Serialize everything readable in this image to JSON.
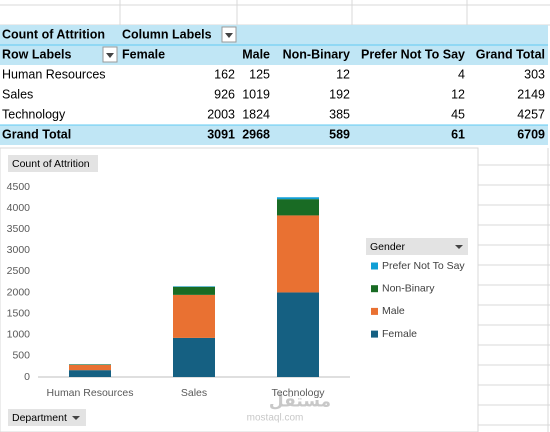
{
  "pivot_table": {
    "corner": "Count of Attrition",
    "column_labels": "Column Labels",
    "row_labels": "Row Labels",
    "columns": [
      "Female",
      "Male",
      "Non-Binary",
      "Prefer Not To Say",
      "Grand Total"
    ],
    "rows": [
      {
        "label": "Human Resources",
        "values": [
          162,
          125,
          12,
          4,
          303
        ]
      },
      {
        "label": "Sales",
        "values": [
          926,
          1019,
          192,
          12,
          2149
        ]
      },
      {
        "label": "Technology",
        "values": [
          2003,
          1824,
          385,
          45,
          4257
        ]
      }
    ],
    "grand_total": {
      "label": "Grand Total",
      "values": [
        3091,
        2968,
        589,
        61,
        6709
      ]
    }
  },
  "chart_data": {
    "type": "stacked_bar",
    "value_field_button": "Count of Attrition",
    "axis_field_button": "Department",
    "legend_title": "Gender",
    "categories": [
      "Human Resources",
      "Sales",
      "Technology"
    ],
    "series": [
      {
        "name": "Female",
        "color": "#156082",
        "values": [
          162,
          926,
          2003
        ]
      },
      {
        "name": "Male",
        "color": "#e97132",
        "values": [
          125,
          1019,
          1824
        ]
      },
      {
        "name": "Non-Binary",
        "color": "#196b24",
        "values": [
          12,
          192,
          385
        ]
      },
      {
        "name": "Prefer Not To Say",
        "color": "#0f9ed5",
        "values": [
          4,
          12,
          45
        ]
      }
    ],
    "ylim": [
      0,
      4500
    ],
    "yticks": [
      0,
      500,
      1000,
      1500,
      2000,
      2500,
      3000,
      3500,
      4000,
      4500
    ],
    "grid": false,
    "legend": "right"
  },
  "watermark": {
    "arabic": "مستقل",
    "latin": "mostaql.com"
  }
}
